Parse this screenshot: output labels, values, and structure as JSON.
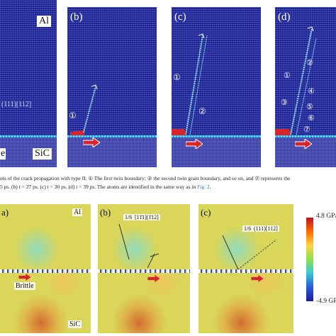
{
  "top_row": {
    "panel_a": {
      "label_material_top": "Al",
      "label_twin": "(111)[112]",
      "label_material_bottom": "SiC",
      "label_interface_left": "e"
    },
    "panel_b": {
      "label": "(b)",
      "markers": [
        "①"
      ]
    },
    "panel_c": {
      "label": "(c)",
      "markers": [
        "①",
        "②"
      ]
    },
    "panel_d": {
      "label": "(d)",
      "markers": [
        "①",
        "②",
        "③",
        "④",
        "⑤",
        "⑥",
        "⑦"
      ]
    }
  },
  "caption": {
    "line1": "ots of the crack propagation with type II. ① The first twin boundary; ② the second twin grain boundary, and so on, and ⑦ represents the",
    "line2_prefix": "5 ps. (b) t = 27 ps. (c) t = 30 ps. (d) t = 39 ps. The atoms are identified in the same way as in ",
    "line2_link": "Fig. 2",
    "line2_suffix": "."
  },
  "bottom_row": {
    "panel_a": {
      "label": "a)",
      "material_top": "Al",
      "material_bottom": "SiC",
      "annotation": "Brittle"
    },
    "panel_b": {
      "label": "(b)",
      "fraction": "1/6",
      "twin": "[11̄1](1̄12]"
    },
    "panel_c": {
      "label": "(c)",
      "fraction": "1/6",
      "twin": "(111)[112]"
    }
  },
  "colorbar": {
    "max_label": "4.8 GPa",
    "min_label": "-4.9 GP"
  },
  "colors": {
    "atom_blue": "#1c2088",
    "arrow_red": "#d6262b",
    "stress_yellow": "#d9d65a"
  }
}
